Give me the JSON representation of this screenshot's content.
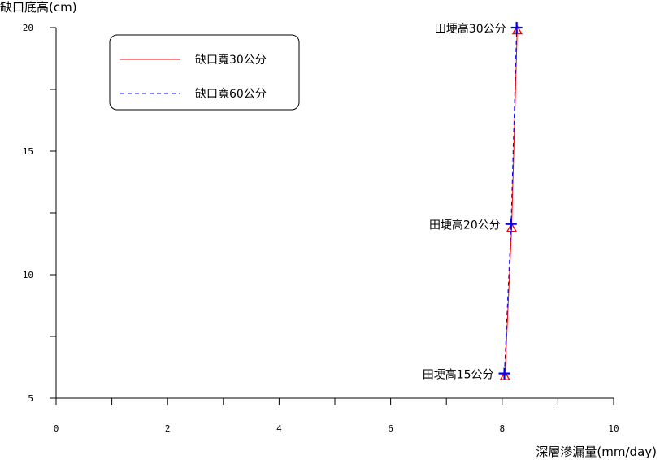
{
  "chart_data": {
    "type": "line",
    "xlabel": "深層滲漏量(mm/day)",
    "ylabel": "缺口底高(cm)",
    "xlim": [
      0,
      10
    ],
    "ylim": [
      5,
      20
    ],
    "x_ticks": [
      "0",
      "2",
      "4",
      "6",
      "8",
      "10"
    ],
    "y_ticks": [
      "5",
      "10",
      "15",
      "20"
    ],
    "grid": false,
    "legend_position": "top-left",
    "series": [
      {
        "name": "缺口寬30公分",
        "color": "#ff0000",
        "line_style": "solid",
        "marker": "triangle",
        "x": [
          8.05,
          8.17,
          8.27
        ],
        "y": [
          5.9,
          11.9,
          19.9
        ]
      },
      {
        "name": "缺口寬60公分",
        "color": "#0000ff",
        "line_style": "dashed",
        "marker": "plus",
        "x": [
          8.04,
          8.16,
          8.26
        ],
        "y": [
          6.0,
          12.05,
          20.0
        ]
      }
    ],
    "annotations": [
      {
        "text": "田埂高15公分",
        "x": 8.04,
        "y": 6.0
      },
      {
        "text": "田埂高20公分",
        "x": 8.16,
        "y": 12.05
      },
      {
        "text": "田埂高30公分",
        "x": 8.26,
        "y": 20.0
      }
    ]
  }
}
